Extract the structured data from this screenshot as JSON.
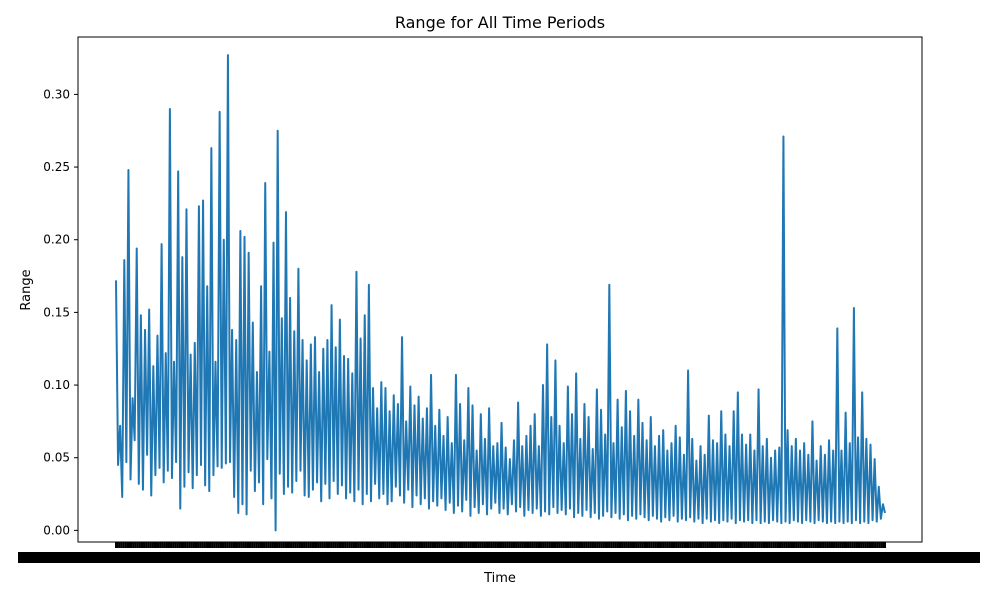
{
  "chart_data": {
    "type": "line",
    "title": "Range for All Time Periods",
    "xlabel": "Time",
    "ylabel": "Range",
    "ylim": [
      -0.008,
      0.3395
    ],
    "yticks": [
      0.0,
      0.05,
      0.1,
      0.15,
      0.2,
      0.25,
      0.3
    ],
    "ytick_labels": [
      "0.00",
      "0.05",
      "0.10",
      "0.15",
      "0.20",
      "0.25",
      "0.30"
    ],
    "xtick_labels_legible": false,
    "grid": false,
    "line_color": "#1f77b4",
    "series": [
      {
        "values": [
          0.172,
          0.045,
          0.072,
          0.023,
          0.186,
          0.047,
          0.248,
          0.035,
          0.091,
          0.062,
          0.194,
          0.032,
          0.148,
          0.028,
          0.138,
          0.052,
          0.152,
          0.024,
          0.113,
          0.038,
          0.134,
          0.043,
          0.197,
          0.033,
          0.122,
          0.041,
          0.29,
          0.036,
          0.116,
          0.047,
          0.247,
          0.015,
          0.188,
          0.03,
          0.221,
          0.04,
          0.121,
          0.029,
          0.129,
          0.038,
          0.223,
          0.045,
          0.227,
          0.031,
          0.168,
          0.027,
          0.263,
          0.038,
          0.116,
          0.044,
          0.288,
          0.043,
          0.2,
          0.046,
          0.327,
          0.047,
          0.138,
          0.023,
          0.131,
          0.012,
          0.206,
          0.018,
          0.202,
          0.011,
          0.191,
          0.041,
          0.143,
          0.027,
          0.109,
          0.033,
          0.168,
          0.018,
          0.239,
          0.049,
          0.123,
          0.022,
          0.198,
          0.0,
          0.275,
          0.039,
          0.146,
          0.025,
          0.219,
          0.03,
          0.16,
          0.026,
          0.137,
          0.034,
          0.18,
          0.041,
          0.131,
          0.024,
          0.117,
          0.023,
          0.128,
          0.028,
          0.133,
          0.033,
          0.109,
          0.02,
          0.125,
          0.032,
          0.131,
          0.022,
          0.155,
          0.034,
          0.126,
          0.025,
          0.145,
          0.031,
          0.12,
          0.022,
          0.118,
          0.026,
          0.108,
          0.02,
          0.178,
          0.028,
          0.132,
          0.018,
          0.148,
          0.025,
          0.169,
          0.02,
          0.098,
          0.032,
          0.084,
          0.022,
          0.102,
          0.025,
          0.098,
          0.018,
          0.082,
          0.02,
          0.093,
          0.03,
          0.087,
          0.024,
          0.133,
          0.019,
          0.075,
          0.028,
          0.099,
          0.016,
          0.086,
          0.024,
          0.092,
          0.018,
          0.077,
          0.022,
          0.084,
          0.015,
          0.107,
          0.02,
          0.072,
          0.017,
          0.083,
          0.022,
          0.065,
          0.014,
          0.078,
          0.019,
          0.06,
          0.012,
          0.107,
          0.017,
          0.087,
          0.013,
          0.062,
          0.021,
          0.098,
          0.01,
          0.086,
          0.016,
          0.055,
          0.012,
          0.08,
          0.018,
          0.063,
          0.011,
          0.084,
          0.015,
          0.058,
          0.019,
          0.06,
          0.012,
          0.074,
          0.015,
          0.057,
          0.011,
          0.049,
          0.018,
          0.062,
          0.013,
          0.088,
          0.016,
          0.058,
          0.01,
          0.065,
          0.014,
          0.072,
          0.012,
          0.08,
          0.015,
          0.058,
          0.01,
          0.1,
          0.013,
          0.128,
          0.011,
          0.078,
          0.016,
          0.117,
          0.012,
          0.072,
          0.014,
          0.06,
          0.011,
          0.099,
          0.015,
          0.08,
          0.009,
          0.108,
          0.012,
          0.063,
          0.01,
          0.087,
          0.014,
          0.078,
          0.009,
          0.056,
          0.012,
          0.097,
          0.008,
          0.083,
          0.01,
          0.066,
          0.013,
          0.169,
          0.009,
          0.06,
          0.012,
          0.09,
          0.008,
          0.071,
          0.011,
          0.096,
          0.007,
          0.082,
          0.01,
          0.065,
          0.008,
          0.09,
          0.011,
          0.074,
          0.009,
          0.062,
          0.007,
          0.078,
          0.01,
          0.058,
          0.008,
          0.065,
          0.006,
          0.069,
          0.009,
          0.055,
          0.007,
          0.06,
          0.01,
          0.072,
          0.006,
          0.064,
          0.008,
          0.052,
          0.007,
          0.11,
          0.009,
          0.063,
          0.006,
          0.048,
          0.008,
          0.058,
          0.005,
          0.052,
          0.008,
          0.079,
          0.006,
          0.062,
          0.007,
          0.06,
          0.005,
          0.082,
          0.007,
          0.066,
          0.006,
          0.058,
          0.008,
          0.082,
          0.005,
          0.095,
          0.007,
          0.066,
          0.006,
          0.059,
          0.007,
          0.066,
          0.005,
          0.055,
          0.007,
          0.097,
          0.005,
          0.058,
          0.006,
          0.063,
          0.005,
          0.05,
          0.007,
          0.055,
          0.006,
          0.057,
          0.005,
          0.271,
          0.006,
          0.069,
          0.005,
          0.058,
          0.007,
          0.063,
          0.006,
          0.055,
          0.005,
          0.06,
          0.007,
          0.052,
          0.006,
          0.075,
          0.005,
          0.048,
          0.007,
          0.058,
          0.006,
          0.052,
          0.005,
          0.062,
          0.006,
          0.055,
          0.005,
          0.139,
          0.006,
          0.055,
          0.005,
          0.081,
          0.006,
          0.06,
          0.005,
          0.153,
          0.007,
          0.064,
          0.005,
          0.095,
          0.006,
          0.063,
          0.005,
          0.059,
          0.007,
          0.049,
          0.006,
          0.03,
          0.008,
          0.018,
          0.012
        ]
      }
    ]
  }
}
